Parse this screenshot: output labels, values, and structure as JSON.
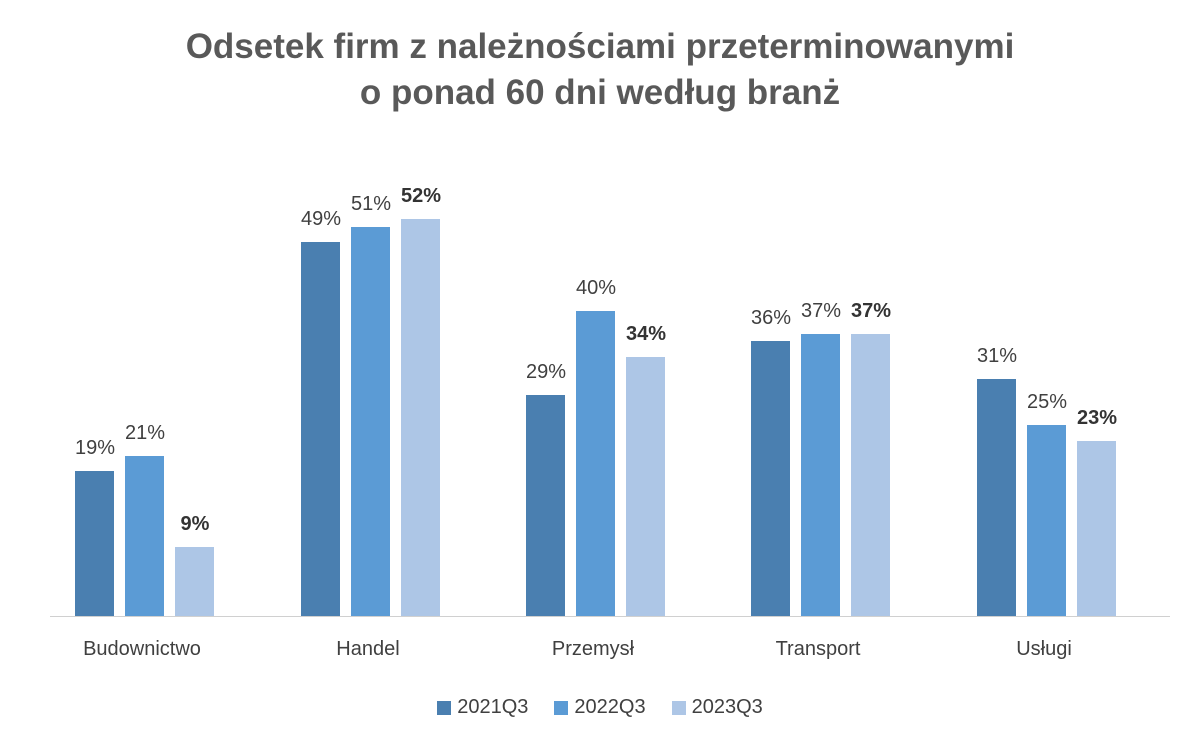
{
  "chart_data": {
    "type": "bar",
    "title": "Odsetek firm z należnościami przeterminowanymi o ponad 60 dni według branż",
    "title_lines": [
      "Odsetek firm z należnościami przeterminowanymi",
      "o ponad 60 dni według branż"
    ],
    "categories": [
      "Budownictwo",
      "Handel",
      "Przemysł",
      "Transport",
      "Usługi"
    ],
    "series": [
      {
        "name": "2021Q3",
        "color": "#4a7fb0",
        "values": [
          19,
          49,
          29,
          36,
          31
        ],
        "labels": [
          "19%",
          "49%",
          "29%",
          "36%",
          "31%"
        ]
      },
      {
        "name": "2022Q3",
        "color": "#5b9bd5",
        "values": [
          21,
          51,
          40,
          37,
          25
        ],
        "labels": [
          "21%",
          "51%",
          "40%",
          "37%",
          "25%"
        ]
      },
      {
        "name": "2023Q3",
        "color": "#adc6e6",
        "values": [
          9,
          52,
          34,
          37,
          23
        ],
        "labels": [
          "9%",
          "52%",
          "34%",
          "37%",
          "23%"
        ],
        "bold_labels": true
      }
    ],
    "xlabel": "",
    "ylabel": "",
    "ylim": [
      0,
      60
    ],
    "grid": false,
    "legend_position": "bottom"
  }
}
